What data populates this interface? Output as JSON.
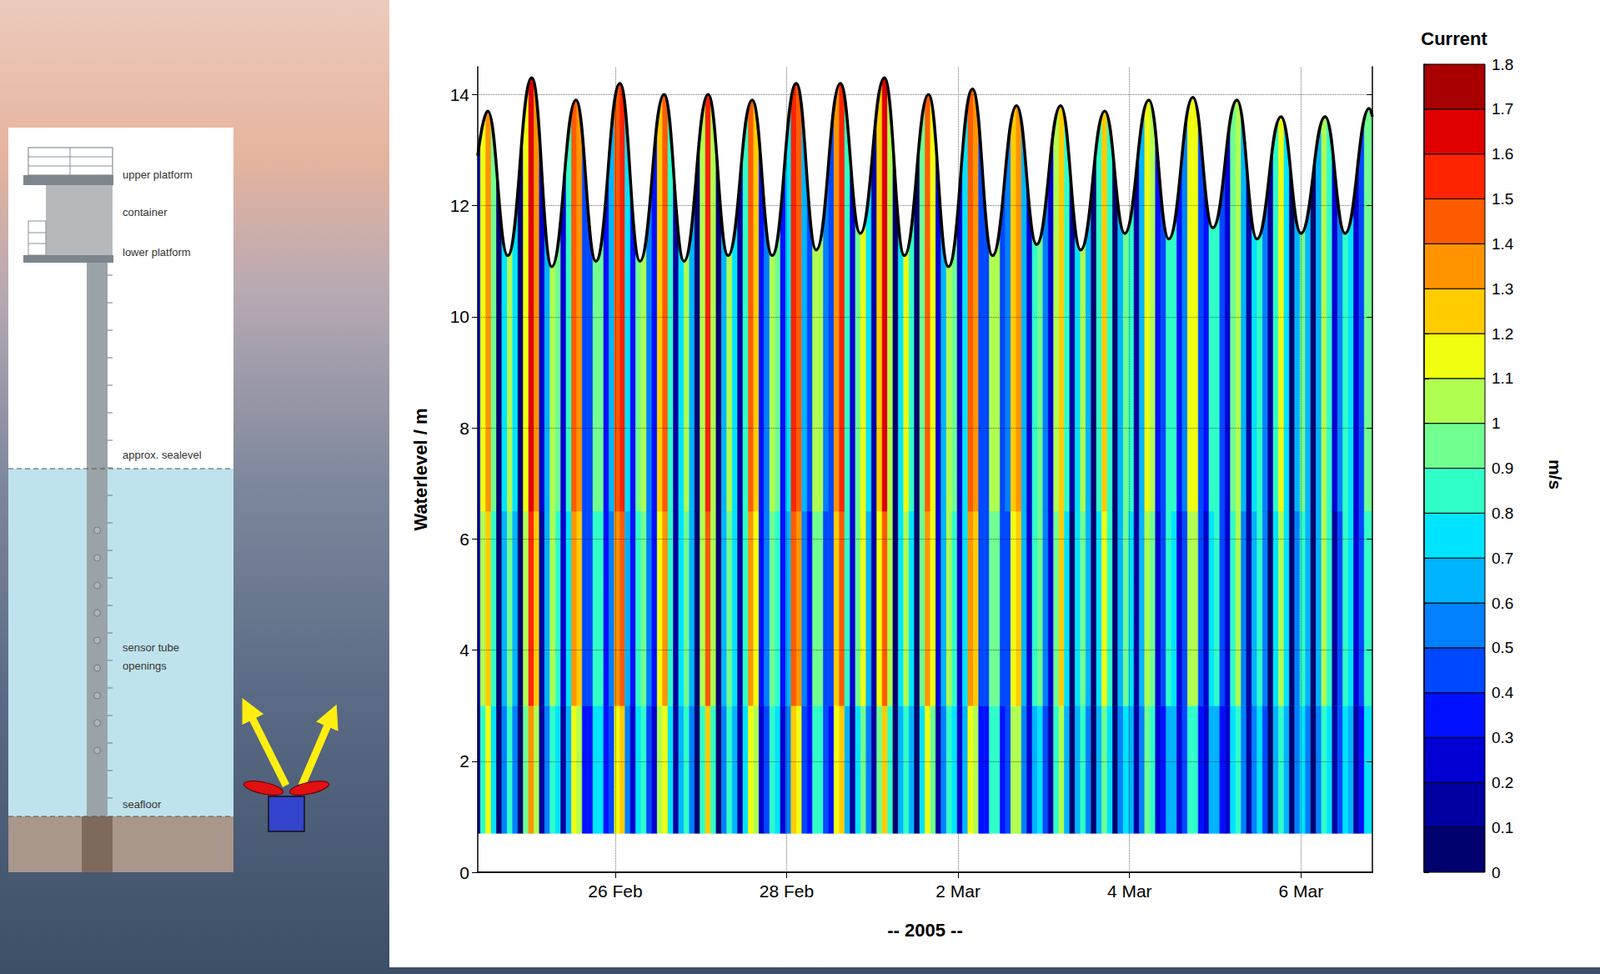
{
  "chart_data": {
    "type": "heatmap",
    "y_label": "Waterlevel / m",
    "x_label": "-- 2005 --",
    "xlim": [
      "2005-02-24 09:30",
      "2005-03-06 20:00"
    ],
    "xticks": [
      {
        "value": "2005-02-26",
        "label": "26 Feb"
      },
      {
        "value": "2005-02-28",
        "label": "28 Feb"
      },
      {
        "value": "2005-03-02",
        "label": "2 Mar"
      },
      {
        "value": "2005-03-04",
        "label": "4 Mar"
      },
      {
        "value": "2005-03-06",
        "label": "6 Mar"
      }
    ],
    "ylim": [
      0,
      14.5
    ],
    "yticks": [
      0,
      2,
      4,
      6,
      8,
      10,
      12,
      14
    ],
    "grid": true,
    "x": [
      "2005-02-24 09:30",
      "2005-02-24 11:00",
      "2005-02-24 12:30",
      "2005-02-24 14:00",
      "2005-02-24 15:30",
      "2005-02-24 17:00",
      "2005-02-24 18:30",
      "2005-02-24 20:00",
      "2005-02-24 21:30",
      "2005-02-24 23:00",
      "2005-02-25 00:30",
      "2005-02-25 02:00",
      "2005-02-25 03:30",
      "2005-02-25 05:00",
      "2005-02-25 06:30",
      "2005-02-25 08:00",
      "2005-02-25 09:30",
      "2005-02-25 11:00",
      "2005-02-25 12:30",
      "2005-02-25 14:00",
      "2005-02-25 15:30",
      "2005-02-25 17:00",
      "2005-02-25 18:30",
      "2005-02-25 20:00",
      "2005-02-25 21:30",
      "2005-02-25 23:00",
      "2005-02-26 00:30",
      "2005-02-26 02:00",
      "2005-02-26 03:30",
      "2005-02-26 05:00",
      "2005-02-26 06:30",
      "2005-02-26 08:00",
      "2005-02-26 09:30",
      "2005-02-26 11:00",
      "2005-02-26 12:30",
      "2005-02-26 14:00",
      "2005-02-26 15:30",
      "2005-02-26 17:00",
      "2005-02-26 18:30",
      "2005-02-26 20:00",
      "2005-02-26 21:30",
      "2005-02-26 23:00",
      "2005-02-27 00:30",
      "2005-02-27 02:00",
      "2005-02-27 03:30",
      "2005-02-27 05:00",
      "2005-02-27 06:30",
      "2005-02-27 08:00",
      "2005-02-27 09:30",
      "2005-02-27 11:00",
      "2005-02-27 12:30",
      "2005-02-27 14:00",
      "2005-02-27 15:30",
      "2005-02-27 17:00",
      "2005-02-27 18:30",
      "2005-02-27 20:00",
      "2005-02-27 21:30",
      "2005-02-27 23:00",
      "2005-02-28 00:30",
      "2005-02-28 02:00",
      "2005-02-28 03:30",
      "2005-02-28 05:00",
      "2005-02-28 06:30",
      "2005-02-28 08:00",
      "2005-02-28 09:30",
      "2005-02-28 11:00",
      "2005-02-28 12:30",
      "2005-02-28 14:00",
      "2005-02-28 15:30",
      "2005-02-28 17:00",
      "2005-02-28 18:30",
      "2005-02-28 20:00",
      "2005-02-28 21:30",
      "2005-02-28 23:00",
      "2005-03-01 00:30",
      "2005-03-01 02:00",
      "2005-03-01 03:30",
      "2005-03-01 05:00",
      "2005-03-01 06:30",
      "2005-03-01 08:00",
      "2005-03-01 09:30",
      "2005-03-01 11:00",
      "2005-03-01 12:30",
      "2005-03-01 14:00",
      "2005-03-01 15:30",
      "2005-03-01 17:00",
      "2005-03-01 18:30",
      "2005-03-01 20:00",
      "2005-03-01 21:30",
      "2005-03-01 23:00",
      "2005-03-02 00:30",
      "2005-03-02 02:00",
      "2005-03-02 03:30",
      "2005-03-02 05:00",
      "2005-03-02 06:30",
      "2005-03-02 08:00",
      "2005-03-02 09:30",
      "2005-03-02 11:00",
      "2005-03-02 12:30",
      "2005-03-02 14:00",
      "2005-03-02 15:30",
      "2005-03-02 17:00",
      "2005-03-02 18:30",
      "2005-03-02 20:00",
      "2005-03-02 21:30",
      "2005-03-02 23:00",
      "2005-03-03 00:30",
      "2005-03-03 02:00",
      "2005-03-03 03:30",
      "2005-03-03 05:00",
      "2005-03-03 06:30",
      "2005-03-03 08:00",
      "2005-03-03 09:30",
      "2005-03-03 11:00",
      "2005-03-03 12:30",
      "2005-03-03 14:00",
      "2005-03-03 15:30",
      "2005-03-03 17:00",
      "2005-03-03 18:30",
      "2005-03-03 20:00",
      "2005-03-03 21:30",
      "2005-03-03 23:00",
      "2005-03-04 00:30",
      "2005-03-04 02:00",
      "2005-03-04 03:30",
      "2005-03-04 05:00",
      "2005-03-04 06:30",
      "2005-03-04 08:00",
      "2005-03-04 09:30",
      "2005-03-04 11:00",
      "2005-03-04 12:30",
      "2005-03-04 14:00",
      "2005-03-04 15:30",
      "2005-03-04 17:00",
      "2005-03-04 18:30",
      "2005-03-04 20:00",
      "2005-03-04 21:30",
      "2005-03-04 23:00",
      "2005-03-05 00:30",
      "2005-03-05 02:00",
      "2005-03-05 03:30",
      "2005-03-05 05:00",
      "2005-03-05 06:30",
      "2005-03-05 08:00",
      "2005-03-05 09:30",
      "2005-03-05 11:00",
      "2005-03-05 12:30",
      "2005-03-05 14:00",
      "2005-03-05 15:30",
      "2005-03-05 17:00",
      "2005-03-05 18:30",
      "2005-03-05 20:00",
      "2005-03-05 21:30",
      "2005-03-05 23:00",
      "2005-03-06 00:30",
      "2005-03-06 02:00",
      "2005-03-06 03:30",
      "2005-03-06 05:00",
      "2005-03-06 06:30",
      "2005-03-06 08:00",
      "2005-03-06 09:30",
      "2005-03-06 11:00",
      "2005-03-06 12:30",
      "2005-03-06 14:00",
      "2005-03-06 15:30",
      "2005-03-06 17:00",
      "2005-03-06 18:30",
      "2005-03-06 20:00"
    ],
    "y_edges": [
      0.7,
      3.0,
      6.5,
      14.5
    ],
    "cells": [
      [
        0.17,
        0.88,
        1.11,
        0.73,
        0.05,
        0.58,
        0.8,
        0.57,
        0.04,
        0.91,
        1.35,
        1.05,
        0.16,
        0.54,
        0.87,
        0.72,
        0.18,
        0.64,
        1.17,
        1.04,
        0.34,
        0.37,
        0.76,
        0.73,
        0.3,
        0.49,
        1.17,
        1.2,
        0.58,
        0.26,
        0.77,
        0.85,
        0.46,
        0.26,
        1.0,
        1.18,
        0.71,
        0.1,
        0.62,
        0.8,
        0.53,
        0.06,
        0.86,
        1.2,
        0.86,
        0.06,
        0.53,
        0.8,
        0.62,
        0.1,
        0.71,
        1.18,
        1.0,
        0.26,
        0.46,
        0.85,
        0.77,
        0.26,
        0.58,
        1.2,
        1.17,
        0.49,
        0.33,
        0.8,
        0.83,
        0.41,
        0.37,
        1.11,
        1.24,
        0.69,
        0.19,
        0.79,
        0.95,
        0.58,
        0.15,
        0.98,
        1.28,
        0.86,
        0.04,
        0.62,
        0.88,
        0.65,
        0.06,
        0.78,
        1.19,
        0.94,
        0.18,
        0.51,
        0.86,
        0.74,
        0.21,
        0.61,
        1.15,
        1.06,
        0.38,
        0.38,
        0.82,
        0.81,
        0.35,
        0.4,
        1.01,
        1.06,
        0.53,
        0.22,
        0.69,
        0.78,
        0.44,
        0.19,
        0.85,
        1.03,
        0.64,
        0.08,
        0.61,
        0.8,
        0.54,
        0.04,
        0.67,
        0.96,
        0.71,
        0.07,
        0.51,
        0.79,
        0.64,
        0.13,
        0.54,
        0.94,
        0.82,
        0.24,
        0.36,
        0.69,
        0.64,
        0.24,
        0.4,
        0.89,
        0.89,
        0.39,
        0.25,
        0.64,
        0.69,
        0.35,
        0.22,
        0.75,
        0.86,
        0.5,
        0.13,
        0.58,
        0.71,
        0.46,
        0.08,
        0.66,
        0.88,
        0.61,
        0.04,
        0.5,
        0.72,
        0.54,
        0.06,
        0.55,
        0.87,
        0.71,
        0.16,
        0.4,
        0.7,
        0.62,
        0.19,
        0.38,
        0.76,
        0.72
      ],
      [
        0.2,
        1.02,
        1.29,
        0.85,
        0.06,
        0.68,
        0.93,
        0.66,
        0.05,
        1.06,
        1.57,
        1.22,
        0.19,
        0.62,
        1.01,
        0.84,
        0.2,
        0.74,
        1.36,
        1.21,
        0.4,
        0.43,
        0.88,
        0.85,
        0.34,
        0.57,
        1.36,
        1.4,
        0.67,
        0.31,
        0.89,
        0.99,
        0.54,
        0.31,
        1.16,
        1.38,
        0.83,
        0.12,
        0.73,
        0.93,
        0.61,
        0.07,
        1.0,
        1.4,
        1.0,
        0.07,
        0.61,
        0.93,
        0.73,
        0.12,
        0.83,
        1.38,
        1.16,
        0.31,
        0.54,
        0.99,
        0.89,
        0.31,
        0.67,
        1.4,
        1.36,
        0.57,
        0.38,
        0.93,
        0.97,
        0.47,
        0.43,
        1.29,
        1.44,
        0.8,
        0.22,
        0.92,
        1.11,
        0.68,
        0.18,
        1.14,
        1.49,
        1.0,
        0.05,
        0.73,
        1.02,
        0.75,
        0.07,
        0.9,
        1.39,
        1.1,
        0.2,
        0.6,
        1.0,
        0.86,
        0.24,
        0.71,
        1.34,
        1.23,
        0.44,
        0.45,
        0.96,
        0.94,
        0.41,
        0.47,
        1.17,
        1.24,
        0.61,
        0.25,
        0.8,
        0.9,
        0.51,
        0.22,
        0.99,
        1.2,
        0.74,
        0.09,
        0.71,
        0.93,
        0.63,
        0.05,
        0.78,
        1.12,
        0.83,
        0.08,
        0.6,
        0.92,
        0.74,
        0.15,
        0.63,
        1.09,
        0.95,
        0.28,
        0.42,
        0.8,
        0.74,
        0.28,
        0.47,
        1.03,
        1.03,
        0.46,
        0.29,
        0.74,
        0.8,
        0.41,
        0.26,
        0.87,
        1.0,
        0.58,
        0.15,
        0.67,
        0.83,
        0.53,
        0.09,
        0.77,
        1.02,
        0.71,
        0.05,
        0.58,
        0.84,
        0.63,
        0.07,
        0.64,
        1.01,
        0.83,
        0.19,
        0.47,
        0.82,
        0.72,
        0.22,
        0.45,
        0.88,
        0.84
      ],
      [
        0.21,
        1.1,
        1.39,
        0.91,
        0.06,
        0.73,
        1.0,
        0.71,
        0.05,
        1.14,
        1.69,
        1.31,
        0.2,
        0.67,
        1.09,
        0.9,
        0.22,
        0.8,
        1.46,
        1.3,
        0.43,
        0.46,
        0.95,
        0.91,
        0.37,
        0.61,
        1.46,
        1.5,
        0.72,
        0.33,
        0.96,
        1.06,
        0.58,
        0.33,
        1.25,
        1.48,
        0.89,
        0.13,
        0.78,
        1.0,
        0.66,
        0.07,
        1.08,
        1.5,
        1.08,
        0.07,
        0.66,
        1.0,
        0.78,
        0.13,
        0.89,
        1.48,
        1.25,
        0.33,
        0.58,
        1.06,
        0.96,
        0.33,
        0.72,
        1.5,
        1.46,
        0.61,
        0.41,
        1.0,
        1.04,
        0.51,
        0.46,
        1.39,
        1.55,
        0.86,
        0.24,
        0.99,
        1.19,
        0.73,
        0.19,
        1.23,
        1.6,
        1.07,
        0.05,
        0.78,
        1.1,
        0.81,
        0.07,
        0.97,
        1.49,
        1.18,
        0.22,
        0.64,
        1.08,
        0.92,
        0.26,
        0.76,
        1.44,
        1.32,
        0.47,
        0.48,
        1.03,
        1.01,
        0.44,
        0.5,
        1.26,
        1.33,
        0.66,
        0.27,
        0.86,
        0.97,
        0.55,
        0.24,
        1.06,
        1.29,
        0.8,
        0.1,
        0.76,
        1.0,
        0.68,
        0.05,
        0.84,
        1.2,
        0.89,
        0.09,
        0.64,
        0.99,
        0.8,
        0.16,
        0.68,
        1.17,
        1.02,
        0.3,
        0.45,
        0.86,
        0.8,
        0.3,
        0.5,
        1.11,
        1.11,
        0.49,
        0.31,
        0.8,
        0.86,
        0.44,
        0.28,
        0.94,
        1.07,
        0.62,
        0.16,
        0.72,
        0.89,
        0.57,
        0.1,
        0.83,
        1.1,
        0.76,
        0.05,
        0.62,
        0.9,
        0.68,
        0.08,
        0.69,
        1.09,
        0.89,
        0.2,
        0.5,
        0.88,
        0.77,
        0.24,
        0.48,
        0.95,
        0.9
      ]
    ],
    "colorbar": {
      "title": "Current",
      "label": "m/s",
      "range": [
        0,
        1.8
      ],
      "ticks": [
        0,
        0.1,
        0.2,
        0.3,
        0.4,
        0.5,
        0.6,
        0.7,
        0.8,
        0.9,
        1,
        1.1,
        1.2,
        1.3,
        1.4,
        1.5,
        1.6,
        1.7,
        1.8
      ],
      "colors": [
        "#00006e",
        "#0000a0",
        "#0000d2",
        "#0010ff",
        "#0048ff",
        "#0080ff",
        "#00b4ff",
        "#00e4ff",
        "#30ffc8",
        "#70ff90",
        "#b0ff50",
        "#f0ff10",
        "#ffcc00",
        "#ff9400",
        "#ff5c00",
        "#ff2400",
        "#e00000",
        "#a80000"
      ]
    },
    "series": [
      {
        "type": "line",
        "color": "#000000",
        "x": [
          "2005-02-24 09:30",
          "2005-02-24 12:18",
          "2005-02-24 17:54",
          "2005-02-25 00:38",
          "2005-02-25 06:14",
          "2005-02-25 12:59",
          "2005-02-25 18:35",
          "2005-02-26 01:19",
          "2005-02-26 06:55",
          "2005-02-26 13:40",
          "2005-02-26 19:16",
          "2005-02-27 02:00",
          "2005-02-27 07:36",
          "2005-02-27 14:20",
          "2005-02-27 19:56",
          "2005-02-28 02:41",
          "2005-02-28 08:17",
          "2005-02-28 15:01",
          "2005-02-28 20:37",
          "2005-03-01 03:22",
          "2005-03-01 08:58",
          "2005-03-01 15:42",
          "2005-03-01 21:18",
          "2005-03-02 04:02",
          "2005-03-02 09:38",
          "2005-03-02 16:23",
          "2005-03-02 21:59",
          "2005-03-03 04:43",
          "2005-03-03 10:19",
          "2005-03-03 17:04",
          "2005-03-03 22:40",
          "2005-03-04 05:24",
          "2005-03-04 11:00",
          "2005-03-04 17:44",
          "2005-03-04 23:20",
          "2005-03-05 06:05",
          "2005-03-05 11:41",
          "2005-03-05 18:25",
          "2005-03-06 00:01",
          "2005-03-06 06:46",
          "2005-03-06 12:22",
          "2005-03-06 19:06",
          "2005-03-06 20:00"
        ],
        "values": [
          12.9,
          13.7,
          11.1,
          14.3,
          10.9,
          13.9,
          11.0,
          14.2,
          11.0,
          14.0,
          11.0,
          14.0,
          11.1,
          13.9,
          11.1,
          14.2,
          11.2,
          14.2,
          11.5,
          14.3,
          11.1,
          14.0,
          10.9,
          14.1,
          11.1,
          13.8,
          11.3,
          13.8,
          11.2,
          13.7,
          11.5,
          13.9,
          11.4,
          13.95,
          11.6,
          13.9,
          11.4,
          13.6,
          11.5,
          13.6,
          11.5,
          13.75,
          13.6
        ]
      }
    ]
  },
  "diagram": {
    "labels": [
      "upper platform",
      "container",
      "lower platform",
      "approx. sealevel",
      "sensor tube openings",
      "seafloor"
    ]
  }
}
